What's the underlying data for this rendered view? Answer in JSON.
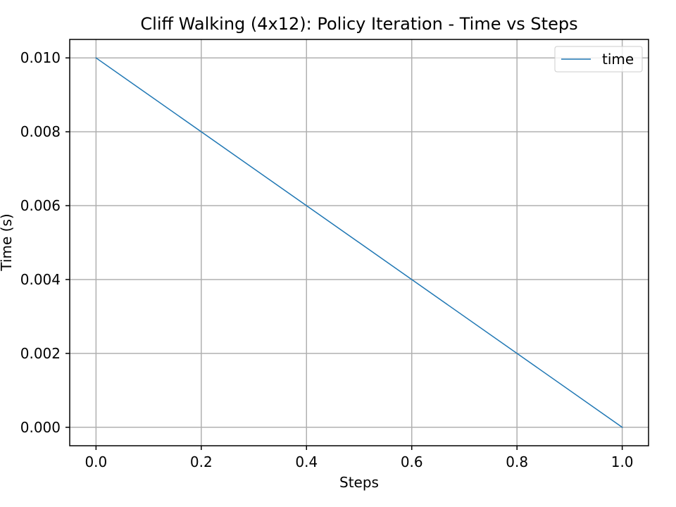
{
  "chart_data": {
    "type": "line",
    "title": "Cliff Walking (4x12): Policy Iteration - Time vs Steps",
    "xlabel": "Steps",
    "ylabel": "Time (s)",
    "xlim": [
      -0.05,
      1.05
    ],
    "ylim": [
      -0.0005,
      0.0105
    ],
    "xticks": [
      0.0,
      0.2,
      0.4,
      0.6,
      0.8,
      1.0
    ],
    "xtick_labels": [
      "0.0",
      "0.2",
      "0.4",
      "0.6",
      "0.8",
      "1.0"
    ],
    "yticks": [
      0.0,
      0.002,
      0.004,
      0.006,
      0.008,
      0.01
    ],
    "ytick_labels": [
      "0.000",
      "0.002",
      "0.004",
      "0.006",
      "0.008",
      "0.010"
    ],
    "grid": true,
    "legend_position": "top-right",
    "series": [
      {
        "name": "time",
        "color": "#1f77b4",
        "x": [
          0,
          1
        ],
        "y": [
          0.01,
          0.0
        ]
      }
    ]
  }
}
